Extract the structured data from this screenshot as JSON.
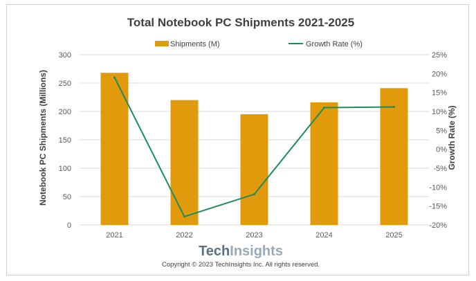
{
  "chart_data": {
    "type": "bar",
    "title": "Total Notebook PC Shipments 2021-2025",
    "categories": [
      "2021",
      "2022",
      "2023",
      "2024",
      "2025"
    ],
    "series": [
      {
        "name": "Shipments (M)",
        "type": "bar",
        "axis": "left",
        "color": "#e19a0b",
        "values": [
          268,
          220,
          195,
          216,
          241
        ]
      },
      {
        "name": "Growth Rate (%)",
        "type": "line",
        "axis": "right",
        "color": "#1f8a5a",
        "values": [
          19,
          -17.8,
          -11.9,
          11,
          11.2
        ]
      }
    ],
    "ylabel": "Notebook PC Shipments (Millions)",
    "ylabel_right": "Growth Rate (%)",
    "ylim": [
      0,
      300
    ],
    "ylim_right": [
      -20,
      25
    ],
    "yticks": [
      "0",
      "50",
      "100",
      "150",
      "200",
      "250",
      "300"
    ],
    "yticks_right": [
      "-20%",
      "-15%",
      "-10%",
      "-5%",
      "0%",
      "5%",
      "10%",
      "15%",
      "20%",
      "25%"
    ],
    "grid": true,
    "legend_position": "top-center"
  },
  "logo": {
    "part1": "Tech",
    "part2": "Insights"
  },
  "copyright": "Copyright © 2023 TechInsights Inc.  All rights reserved."
}
